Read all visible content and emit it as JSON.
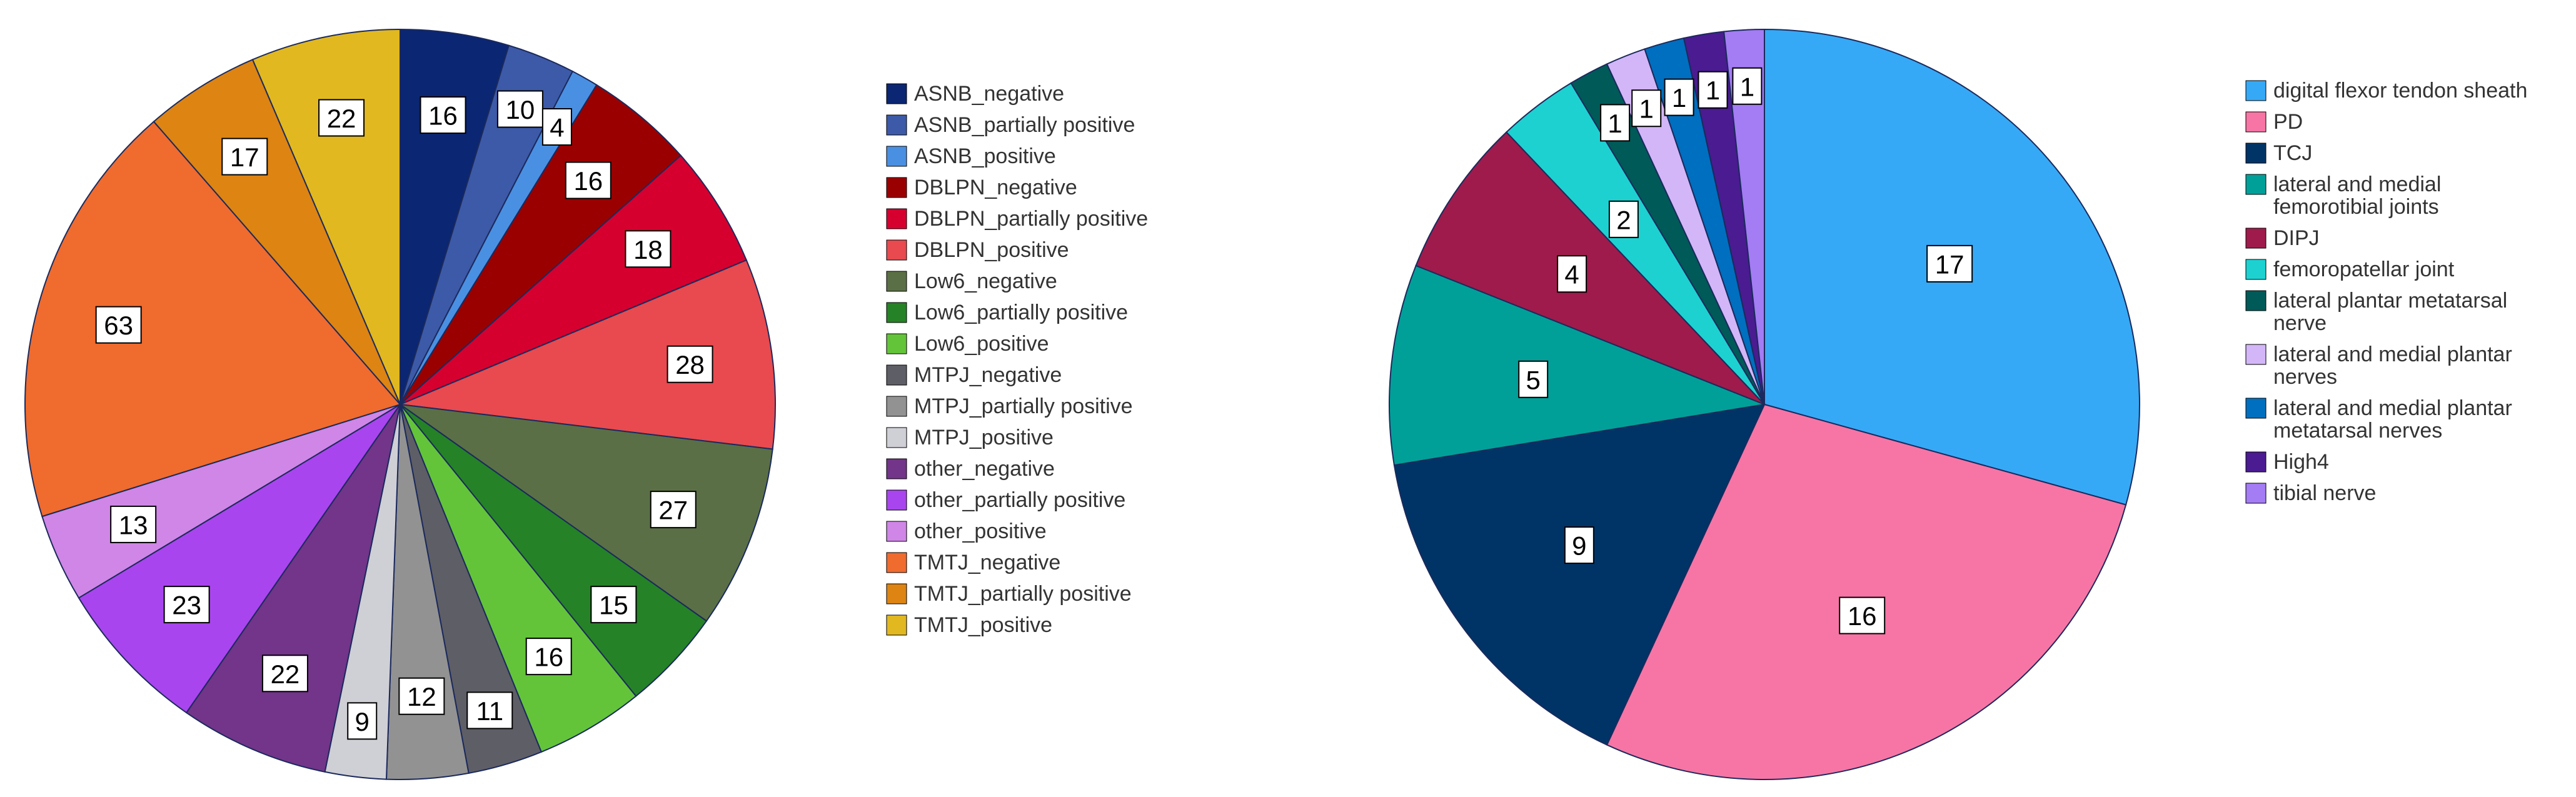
{
  "chart_data": [
    {
      "type": "pie",
      "title": "",
      "start_angle_deg": 0,
      "direction": "clockwise",
      "slices": [
        {
          "label": "ASNB_negative",
          "value": 16,
          "color": "#0b2672"
        },
        {
          "label": "ASNB_partially positive",
          "value": 10,
          "color": "#3d5aa8"
        },
        {
          "label": "ASNB_positive",
          "value": 4,
          "color": "#4a90e2"
        },
        {
          "label": "DBLPN_negative",
          "value": 16,
          "color": "#9b0000"
        },
        {
          "label": "DBLPN_partially positive",
          "value": 18,
          "color": "#d6002f"
        },
        {
          "label": "DBLPN_positive",
          "value": 28,
          "color": "#e84a4f"
        },
        {
          "label": "Low6_negative",
          "value": 27,
          "color": "#5b6f46"
        },
        {
          "label": "Low6_partially positive",
          "value": 15,
          "color": "#268226"
        },
        {
          "label": "Low6_positive",
          "value": 16,
          "color": "#63c43a"
        },
        {
          "label": "MTPJ_negative",
          "value": 11,
          "color": "#5e5e66"
        },
        {
          "label": "MTPJ_partially positive",
          "value": 12,
          "color": "#929292"
        },
        {
          "label": "MTPJ_positive",
          "value": 9,
          "color": "#cfcfd6"
        },
        {
          "label": "other_negative",
          "value": 22,
          "color": "#723589"
        },
        {
          "label": "other_partially positive",
          "value": 23,
          "color": "#a945ee"
        },
        {
          "label": "other_positive",
          "value": 13,
          "color": "#cf86e6"
        },
        {
          "label": "TMTJ_negative",
          "value": 63,
          "color": "#f06b2e"
        },
        {
          "label": "TMTJ_partially positive",
          "value": 17,
          "color": "#dd8412"
        },
        {
          "label": "TMTJ_positive",
          "value": 22,
          "color": "#e1b820"
        }
      ]
    },
    {
      "type": "pie",
      "title": "",
      "start_angle_deg": 0,
      "direction": "clockwise",
      "slices": [
        {
          "label": "digital flexor tendon sheath",
          "value": 17,
          "color": "#36a9f6"
        },
        {
          "label": "PD",
          "value": 16,
          "color": "#f675a5"
        },
        {
          "label": "TCJ",
          "value": 9,
          "color": "#003466"
        },
        {
          "label": "lateral and medial femorotibial joints",
          "value": 5,
          "color": "#00a099"
        },
        {
          "label": "DIPJ",
          "value": 4,
          "color": "#9f1b4b"
        },
        {
          "label": "femoropatellar joint",
          "value": 2,
          "color": "#1ed1d1"
        },
        {
          "label": "lateral plantar metatarsal nerve",
          "value": 1,
          "color": "#005a58"
        },
        {
          "label": "lateral and medial plantar nerves",
          "value": 1,
          "color": "#d3b6f8"
        },
        {
          "label": "lateral and medial plantar metatarsal nerves",
          "value": 1,
          "color": "#006fbf"
        },
        {
          "label": "High4",
          "value": 1,
          "color": "#4a1b91"
        },
        {
          "label": "tibial nerve",
          "value": 1,
          "color": "#a47cf4"
        }
      ]
    }
  ],
  "legends": [
    {
      "items": [
        {
          "lines": [
            "ASNB_negative"
          ]
        },
        {
          "lines": [
            "ASNB_partially positive"
          ]
        },
        {
          "lines": [
            "ASNB_positive"
          ]
        },
        {
          "lines": [
            "DBLPN_negative"
          ]
        },
        {
          "lines": [
            "DBLPN_partially positive"
          ]
        },
        {
          "lines": [
            "DBLPN_positive"
          ]
        },
        {
          "lines": [
            "Low6_negative"
          ]
        },
        {
          "lines": [
            "Low6_partially positive"
          ]
        },
        {
          "lines": [
            "Low6_positive"
          ]
        },
        {
          "lines": [
            "MTPJ_negative"
          ]
        },
        {
          "lines": [
            "MTPJ_partially positive"
          ]
        },
        {
          "lines": [
            "MTPJ_positive"
          ]
        },
        {
          "lines": [
            "other_negative"
          ]
        },
        {
          "lines": [
            "other_partially positive"
          ]
        },
        {
          "lines": [
            "other_positive"
          ]
        },
        {
          "lines": [
            "TMTJ_negative"
          ]
        },
        {
          "lines": [
            "TMTJ_partially positive"
          ]
        },
        {
          "lines": [
            "TMTJ_positive"
          ]
        }
      ]
    },
    {
      "items": [
        {
          "lines": [
            "digital flexor tendon sheath"
          ]
        },
        {
          "lines": [
            "PD"
          ]
        },
        {
          "lines": [
            "TCJ"
          ]
        },
        {
          "lines": [
            "lateral and medial",
            "femorotibial joints"
          ]
        },
        {
          "lines": [
            "DIPJ"
          ]
        },
        {
          "lines": [
            "femoropatellar joint"
          ]
        },
        {
          "lines": [
            "lateral plantar metatarsal",
            "nerve"
          ]
        },
        {
          "lines": [
            "lateral and medial plantar",
            "nerves"
          ]
        },
        {
          "lines": [
            "lateral and medial plantar",
            "metatarsal nerves"
          ]
        },
        {
          "lines": [
            "High4"
          ]
        },
        {
          "lines": [
            "tibial nerve"
          ]
        }
      ]
    }
  ]
}
